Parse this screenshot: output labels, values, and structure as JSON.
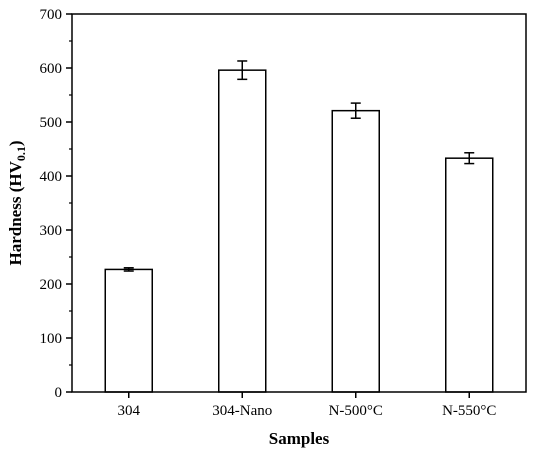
{
  "chart_data": {
    "type": "bar",
    "categories": [
      "304",
      "304-Nano",
      "N-500°C",
      "N-550°C"
    ],
    "values": [
      227,
      596,
      521,
      433
    ],
    "errors": [
      3,
      17,
      14,
      10
    ],
    "xlabel": "Samples",
    "ylabel": "Hardness (HV0.1)",
    "ylabel_main": "Hardness (HV",
    "ylabel_sub": "0.1",
    "ylabel_close": ")",
    "ylim": [
      0,
      700
    ],
    "yticks": [
      0,
      100,
      200,
      300,
      400,
      500,
      600,
      700
    ],
    "grid": false,
    "legend": "none",
    "bar_fill": "#ffffff",
    "bar_stroke": "#000000"
  }
}
